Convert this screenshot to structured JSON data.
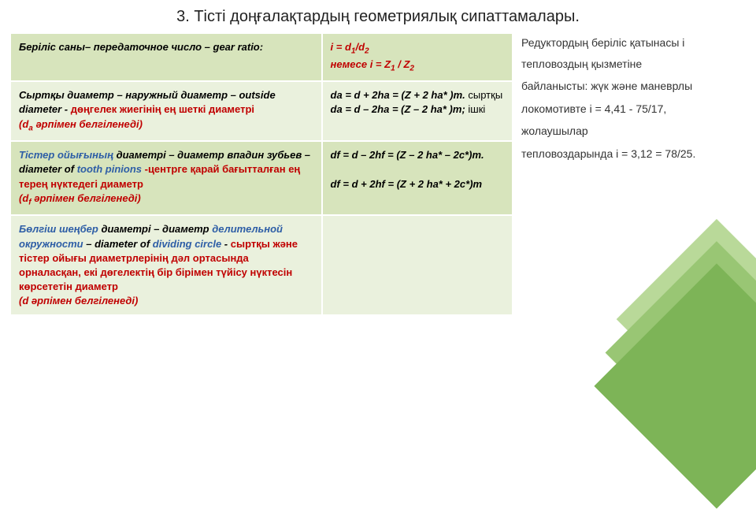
{
  "title": "3. Тісті доңғалақтардың геометриялық сипаттамалары.",
  "table": {
    "rows": [
      {
        "left": {
          "segments": [
            {
              "text": "Беріліс саны– передаточное число – gear ratio:",
              "cls": "black bold italic"
            }
          ]
        },
        "right": {
          "segments": [
            {
              "text": "i = d",
              "cls": "red bold italic"
            },
            {
              "text": "1",
              "cls": "red bold italic sub"
            },
            {
              "text": "/d",
              "cls": "red bold italic"
            },
            {
              "text": "2",
              "cls": "red bold italic sub"
            },
            {
              "text": "\n немесе  i = Z",
              "cls": "red bold italic"
            },
            {
              "text": "1",
              "cls": "red bold italic sub"
            },
            {
              "text": " / Z",
              "cls": "red bold italic"
            },
            {
              "text": "2",
              "cls": "red bold italic sub"
            }
          ]
        },
        "rowcls": "darker"
      },
      {
        "left": {
          "segments": [
            {
              "text": "Сыртқы диаметр – наружный диаметр – outside diameter - ",
              "cls": "black bold italic"
            },
            {
              "text": "дөңгелек жиегінің ең шеткі диаметрі",
              "cls": "red bold"
            },
            {
              "text": "\n(d",
              "cls": "red bold italic"
            },
            {
              "text": "a",
              "cls": "red bold italic sub"
            },
            {
              "text": " әрпімен белгіленеді)",
              "cls": "red bold italic"
            }
          ]
        },
        "right": {
          "segments": [
            {
              "text": "da = d + 2ha = (Z + 2 ha* )m. ",
              "cls": "black bold italic"
            },
            {
              "text": "сыртқы",
              "cls": "black"
            },
            {
              "text": "\nda = d – 2ha = (Z – 2 ha* )m; ",
              "cls": "black bold italic"
            },
            {
              "text": "ішкі",
              "cls": "black"
            }
          ]
        },
        "rowcls": ""
      },
      {
        "left": {
          "segments": [
            {
              "text": "Тістер ойығының",
              "cls": "blue bold italic"
            },
            {
              "text": " диаметрі – диаметр впадин зубьев – diameter of ",
              "cls": "black bold italic"
            },
            {
              "text": "tooth pinions ",
              "cls": "blue bold italic"
            },
            {
              "text": "-центрге қарай бағытталған ең терең нүктедегі диаметр",
              "cls": "red bold"
            },
            {
              "text": "\n(d",
              "cls": "red bold italic"
            },
            {
              "text": "f",
              "cls": "red bold italic sub"
            },
            {
              "text": "  әрпімен белгіленеді)",
              "cls": "red bold italic"
            }
          ]
        },
        "right": {
          "segments": [
            {
              "text": "df = d – 2hf = (Z – 2 ha* – 2c*)m.",
              "cls": "black bold italic"
            },
            {
              "text": "\n\ndf = d + 2hf = (Z + 2 ha* + 2c*)m",
              "cls": "black bold italic"
            }
          ]
        },
        "rowcls": "darker"
      },
      {
        "left": {
          "segments": [
            {
              "text": "Бөлгіш шеңбер",
              "cls": "blue bold italic"
            },
            {
              "text": " диаметрі – диаметр ",
              "cls": "black bold italic"
            },
            {
              "text": "делительной окружности",
              "cls": "blue bold italic"
            },
            {
              "text": " – diameter of ",
              "cls": "black bold italic"
            },
            {
              "text": "dividing circle",
              "cls": "blue bold italic"
            },
            {
              "text": " - ",
              "cls": "black bold italic"
            },
            {
              "text": "сыртқы және тістер ойығы диаметрлерінің дәл ортасында орналасқан, екі дөгелектің бір бірімен түйісу нүктесін көрсететін диаметр",
              "cls": "red bold"
            },
            {
              "text": "\n(d  әрпімен белгіленеді)",
              "cls": "red bold italic"
            }
          ]
        },
        "right": {
          "segments": []
        },
        "rowcls": ""
      }
    ]
  },
  "side": {
    "lines": [
      "Редуктордың беріліс қатынасы і тепловоздың қызметіне",
      " байланысты: жүк және маневрлы",
      "локомотивте і = 4,41 - 75/17,",
      "жолаушылар",
      "тепловоздарында і = 3,12 = 78/25."
    ]
  }
}
